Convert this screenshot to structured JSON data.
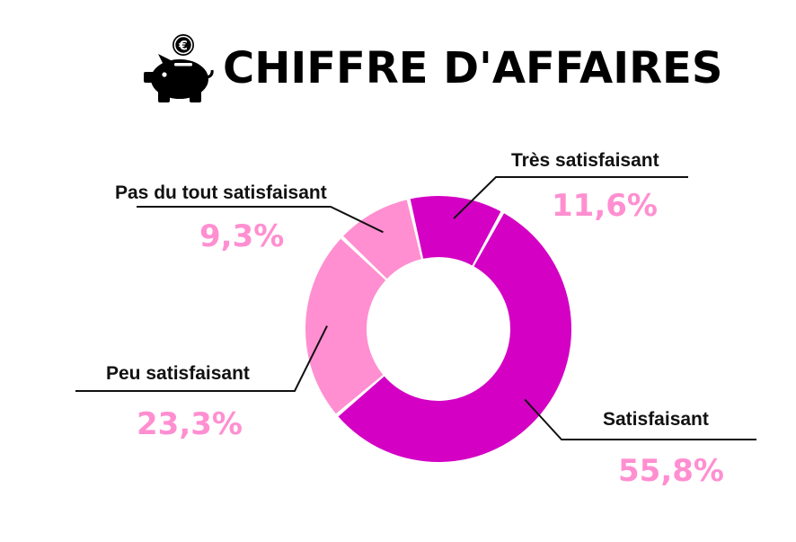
{
  "header": {
    "title": "CHIFFRE D'AFFAIRES",
    "icon": "piggy-bank-euro-icon",
    "coin_symbol": "€"
  },
  "colors": {
    "tres_satisfaisant": "#d400c4",
    "satisfaisant": "#d400c4",
    "peu_satisfaisant": "#ff8fd1",
    "pas_du_tout": "#ff8fd1",
    "label_text": "#111111",
    "percent_text": "#ff8fd1"
  },
  "chart_data": {
    "type": "pie",
    "variant": "donut",
    "title": "CHIFFRE D'AFFAIRES",
    "unit": "%",
    "slices": [
      {
        "key": "tres_satisfaisant",
        "label": "Très satisfaisant",
        "value": 11.6,
        "display": "11,6%"
      },
      {
        "key": "satisfaisant",
        "label": "Satisfaisant",
        "value": 55.8,
        "display": "55,8%"
      },
      {
        "key": "peu_satisfaisant",
        "label": "Peu satisfaisant",
        "value": 23.3,
        "display": "23,3%"
      },
      {
        "key": "pas_du_tout",
        "label": "Pas du tout satisfaisant",
        "value": 9.3,
        "display": "9,3%"
      }
    ]
  }
}
